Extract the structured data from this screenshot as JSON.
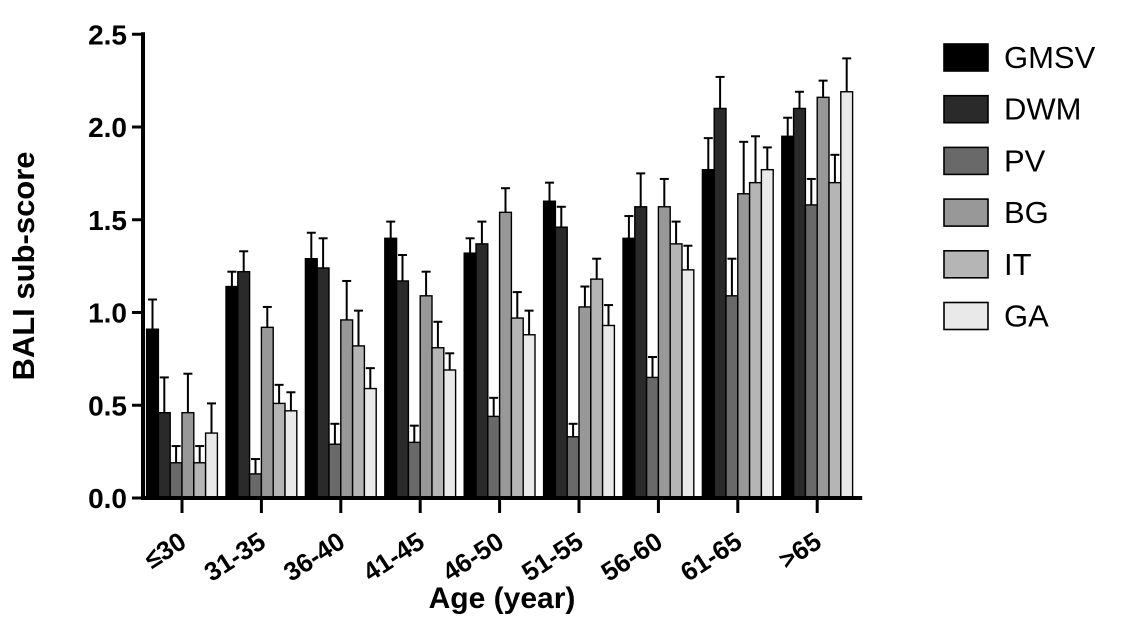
{
  "figure": {
    "background": "#ffffff"
  },
  "chart_data": {
    "type": "bar",
    "title": "",
    "ylabel": "BALI sub-score",
    "xlabel": "Age (year)",
    "ylim": [
      0,
      2.5
    ],
    "y_tick_labels": [
      "0.0",
      "0.5",
      "1.0",
      "1.5",
      "2.0",
      "2.5"
    ],
    "grid": false,
    "legend_position": "right-outside",
    "error_bars": "upper-only with caps",
    "bar_outline_color": "#000000",
    "categories": [
      "≤30",
      "31-35",
      "36-40",
      "41-45",
      "46-50",
      "51-55",
      "56-60",
      "61-65",
      ">65"
    ],
    "series": [
      {
        "name": "GMSV",
        "color": "#000000",
        "values": [
          0.91,
          1.14,
          1.29,
          1.4,
          1.32,
          1.6,
          1.4,
          1.77,
          1.95
        ],
        "errors": [
          0.16,
          0.08,
          0.14,
          0.09,
          0.08,
          0.1,
          0.12,
          0.17,
          0.1
        ]
      },
      {
        "name": "DWM",
        "color": "#2a2a2a",
        "values": [
          0.46,
          1.22,
          1.24,
          1.17,
          1.37,
          1.46,
          1.57,
          2.1,
          2.1
        ],
        "errors": [
          0.19,
          0.11,
          0.16,
          0.14,
          0.12,
          0.11,
          0.18,
          0.17,
          0.09
        ]
      },
      {
        "name": "PV",
        "color": "#696969",
        "values": [
          0.19,
          0.13,
          0.29,
          0.3,
          0.44,
          0.33,
          0.65,
          1.09,
          1.58
        ],
        "errors": [
          0.09,
          0.08,
          0.11,
          0.09,
          0.1,
          0.07,
          0.11,
          0.2,
          0.14
        ]
      },
      {
        "name": "BG",
        "color": "#989898",
        "values": [
          0.46,
          0.92,
          0.96,
          1.09,
          1.54,
          1.03,
          1.57,
          1.64,
          2.16
        ],
        "errors": [
          0.21,
          0.11,
          0.21,
          0.13,
          0.13,
          0.11,
          0.15,
          0.28,
          0.09
        ]
      },
      {
        "name": "IT",
        "color": "#b5b5b5",
        "values": [
          0.19,
          0.51,
          0.82,
          0.81,
          0.97,
          1.18,
          1.37,
          1.7,
          1.7
        ],
        "errors": [
          0.09,
          0.1,
          0.19,
          0.14,
          0.14,
          0.11,
          0.12,
          0.25,
          0.15
        ]
      },
      {
        "name": "GA",
        "color": "#e9e9e9",
        "values": [
          0.35,
          0.47,
          0.59,
          0.69,
          0.88,
          0.93,
          1.23,
          1.77,
          2.19
        ],
        "errors": [
          0.16,
          0.1,
          0.11,
          0.09,
          0.13,
          0.11,
          0.13,
          0.12,
          0.18
        ]
      }
    ]
  }
}
